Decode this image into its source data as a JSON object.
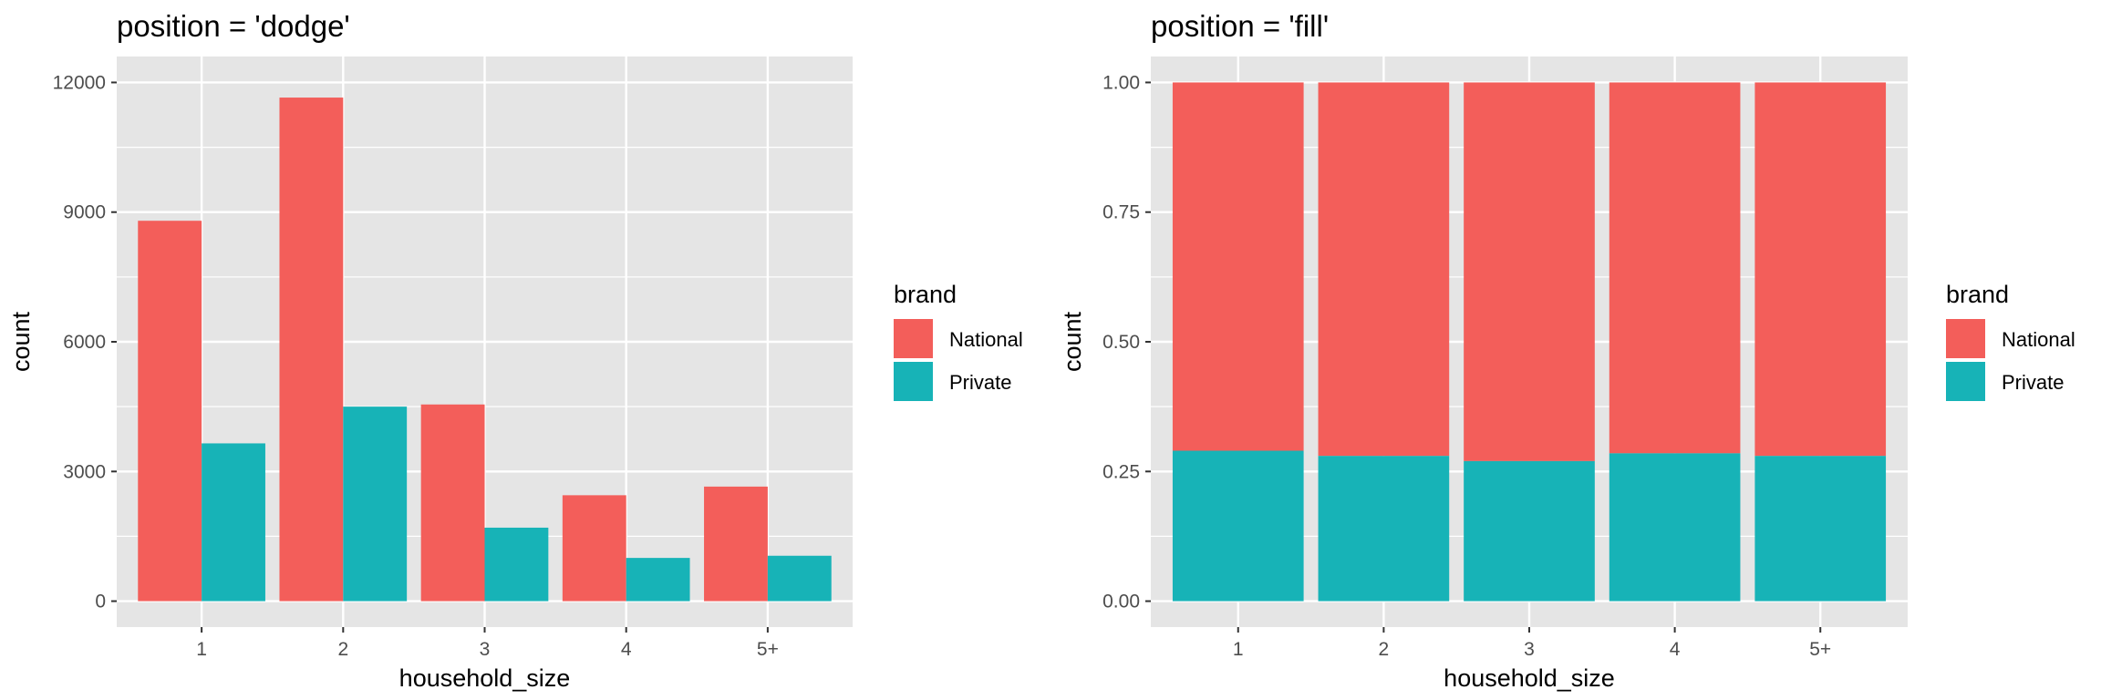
{
  "colors": {
    "panel": "#e5e5e5",
    "grid_major": "#ffffff",
    "grid_minor": "#f2f2f2",
    "tick_text": "#4d4d4d",
    "tick_mark": "#333333"
  },
  "legend": {
    "title": "brand",
    "items": [
      {
        "label": "National",
        "color": "#f35e5a"
      },
      {
        "label": "Private",
        "color": "#17b3b7"
      }
    ]
  },
  "chart_data": [
    {
      "type": "bar",
      "position": "dodge",
      "title": "position = 'dodge'",
      "xlabel": "household_size",
      "ylabel": "count",
      "categories": [
        "1",
        "2",
        "3",
        "4",
        "5+"
      ],
      "series": [
        {
          "name": "National",
          "values": [
            8800,
            11650,
            4550,
            2450,
            2650
          ]
        },
        {
          "name": "Private",
          "values": [
            3650,
            4500,
            1700,
            1000,
            1050
          ]
        }
      ],
      "ylim": [
        -600,
        12600
      ],
      "yticks": [
        0,
        3000,
        6000,
        9000,
        12000
      ],
      "ytick_labels": [
        "0",
        "3000",
        "6000",
        "9000",
        "12000"
      ],
      "grid": true
    },
    {
      "type": "bar",
      "position": "fill",
      "title": "position = 'fill'",
      "xlabel": "household_size",
      "ylabel": "count",
      "categories": [
        "1",
        "2",
        "3",
        "4",
        "5+"
      ],
      "series": [
        {
          "name": "National",
          "values": [
            0.71,
            0.72,
            0.73,
            0.715,
            0.72
          ]
        },
        {
          "name": "Private",
          "values": [
            0.29,
            0.28,
            0.27,
            0.285,
            0.28
          ]
        }
      ],
      "ylim": [
        -0.05,
        1.05
      ],
      "yticks": [
        0,
        0.25,
        0.5,
        0.75,
        1.0
      ],
      "ytick_labels": [
        "0.00",
        "0.25",
        "0.50",
        "0.75",
        "1.00"
      ],
      "grid": true
    }
  ]
}
